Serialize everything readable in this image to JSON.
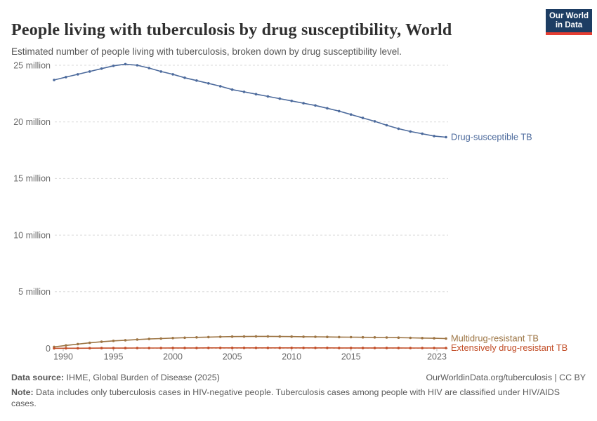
{
  "header": {
    "title": "People living with tuberculosis by drug susceptibility, World",
    "subtitle": "Estimated number of people living with tuberculosis, broken down by drug susceptibility level.",
    "logo": {
      "line1": "Our World",
      "line2": "in Data",
      "bg_color": "#1d3d63",
      "bar_color": "#e63e32"
    }
  },
  "chart_data": {
    "type": "line",
    "title": "People living with tuberculosis by drug susceptibility, World",
    "xlabel": "",
    "ylabel": "",
    "unit": "million people",
    "xlim": [
      1990,
      2023
    ],
    "ylim": [
      0,
      26
    ],
    "grid": "horizontal dashed",
    "legend": "line-end labels",
    "x": [
      1990,
      1991,
      1992,
      1993,
      1994,
      1995,
      1996,
      1997,
      1998,
      1999,
      2000,
      2001,
      2002,
      2003,
      2004,
      2005,
      2006,
      2007,
      2008,
      2009,
      2010,
      2011,
      2012,
      2013,
      2014,
      2015,
      2016,
      2017,
      2018,
      2019,
      2020,
      2021,
      2022,
      2023
    ],
    "series": [
      {
        "name": "Drug-susceptible TB",
        "color": "#4c6a9c",
        "values": [
          23.7,
          23.95,
          24.2,
          24.45,
          24.7,
          24.95,
          25.1,
          25.0,
          24.75,
          24.45,
          24.2,
          23.9,
          23.65,
          23.4,
          23.15,
          22.85,
          22.65,
          22.45,
          22.25,
          22.05,
          21.85,
          21.65,
          21.45,
          21.2,
          20.95,
          20.65,
          20.35,
          20.05,
          19.7,
          19.4,
          19.15,
          18.95,
          18.75,
          18.65
        ]
      },
      {
        "name": "Multidrug-resistant TB",
        "color": "#9d7544",
        "values": [
          0.13,
          0.26,
          0.38,
          0.49,
          0.58,
          0.66,
          0.72,
          0.78,
          0.83,
          0.87,
          0.91,
          0.94,
          0.97,
          1.0,
          1.02,
          1.04,
          1.05,
          1.06,
          1.06,
          1.05,
          1.04,
          1.03,
          1.02,
          1.01,
          1.0,
          0.99,
          0.98,
          0.97,
          0.96,
          0.95,
          0.93,
          0.91,
          0.89,
          0.87
        ]
      },
      {
        "name": "Extensively drug-resistant TB",
        "color": "#c24d27",
        "values": [
          0.005,
          0.01,
          0.015,
          0.02,
          0.022,
          0.025,
          0.027,
          0.03,
          0.032,
          0.034,
          0.036,
          0.038,
          0.04,
          0.042,
          0.043,
          0.044,
          0.045,
          0.045,
          0.045,
          0.044,
          0.044,
          0.043,
          0.042,
          0.041,
          0.04,
          0.039,
          0.038,
          0.037,
          0.036,
          0.035,
          0.034,
          0.033,
          0.032,
          0.031
        ]
      }
    ],
    "yticks": [
      {
        "value": 0,
        "label": "0"
      },
      {
        "value": 5,
        "label": "5 million"
      },
      {
        "value": 10,
        "label": "10 million"
      },
      {
        "value": 15,
        "label": "15 million"
      },
      {
        "value": 20,
        "label": "20 million"
      },
      {
        "value": 25,
        "label": "25 million"
      }
    ],
    "xticks": [
      {
        "year": 1990,
        "label": "1990",
        "align": "start"
      },
      {
        "year": 1995,
        "label": "1995",
        "align": "middle"
      },
      {
        "year": 2000,
        "label": "2000",
        "align": "middle"
      },
      {
        "year": 2005,
        "label": "2005",
        "align": "middle"
      },
      {
        "year": 2010,
        "label": "2010",
        "align": "middle"
      },
      {
        "year": 2015,
        "label": "2015",
        "align": "middle"
      },
      {
        "year": 2023,
        "label": "2023",
        "align": "end"
      }
    ]
  },
  "footer": {
    "source_label": "Data source:",
    "source_value": " IHME, Global Burden of Disease (2025)",
    "link": "OurWorldinData.org/tuberculosis | CC BY",
    "note_label": "Note:",
    "note_text": " Data includes only tuberculosis cases in HIV-negative people. Tuberculosis cases among people with HIV are classified under HIV/AIDS cases."
  }
}
